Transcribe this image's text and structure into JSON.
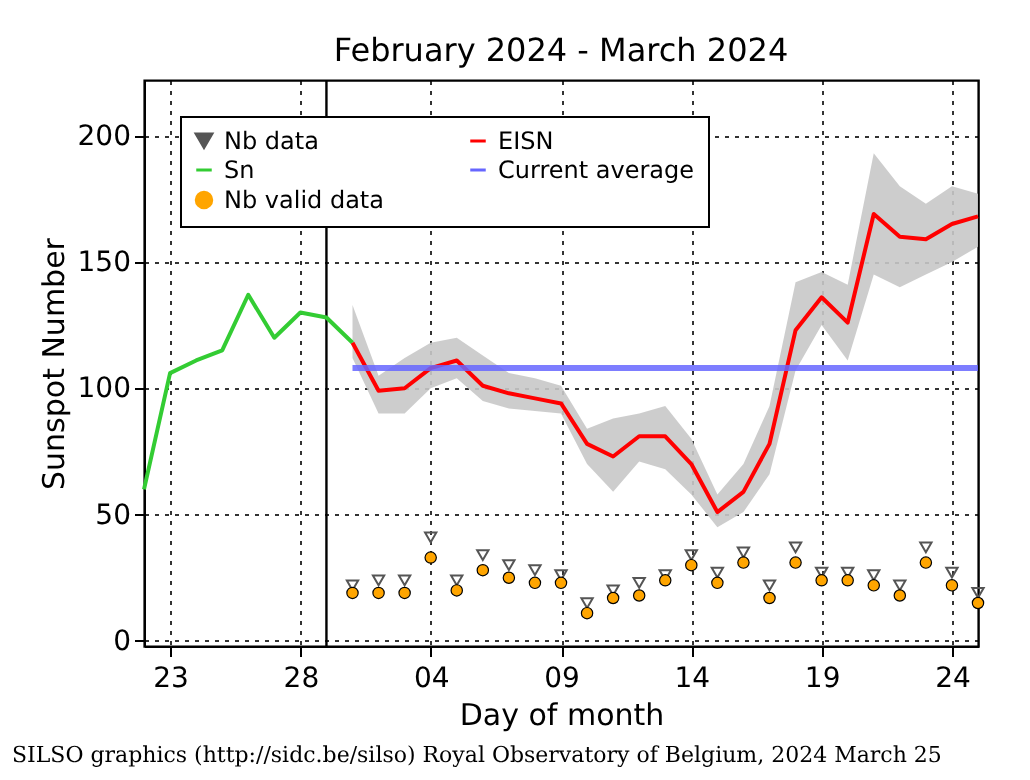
{
  "chart_data": {
    "type": "line",
    "title": "February 2024 - March 2024",
    "xlabel": "Day of month",
    "ylabel": "Sunspot Number",
    "xlim": [
      "2024-02-22",
      "2024-03-25"
    ],
    "ylim": [
      -2,
      222
    ],
    "xticks": [
      {
        "value": "2024-02-23",
        "label": "23"
      },
      {
        "value": "2024-02-28",
        "label": "28"
      },
      {
        "value": "2024-03-04",
        "label": "04"
      },
      {
        "value": "2024-03-09",
        "label": "09"
      },
      {
        "value": "2024-03-14",
        "label": "14"
      },
      {
        "value": "2024-03-19",
        "label": "19"
      },
      {
        "value": "2024-03-24",
        "label": "24"
      }
    ],
    "yticks": [
      0,
      50,
      100,
      150,
      200
    ],
    "grid": true,
    "legend": "top left",
    "ref_lines": [
      {
        "axis": "x",
        "value": "2024-02-29",
        "color": "#000000"
      }
    ],
    "annotations": [
      "SILSO graphics (http://sidc.be/silso) Royal Observatory of Belgium, 2024 March 25"
    ],
    "series": [
      {
        "name": "Nb data",
        "type": "scatter",
        "marker": "triangle",
        "color": "#555555",
        "x": [
          "2024-03-01",
          "2024-03-02",
          "2024-03-03",
          "2024-03-04",
          "2024-03-05",
          "2024-03-06",
          "2024-03-07",
          "2024-03-08",
          "2024-03-09",
          "2024-03-10",
          "2024-03-11",
          "2024-03-12",
          "2024-03-13",
          "2024-03-14",
          "2024-03-15",
          "2024-03-16",
          "2024-03-17",
          "2024-03-18",
          "2024-03-19",
          "2024-03-20",
          "2024-03-21",
          "2024-03-22",
          "2024-03-23",
          "2024-03-24",
          "2024-03-25"
        ],
        "values": [
          22,
          24,
          24,
          41,
          24,
          34,
          30,
          28,
          26,
          15,
          20,
          23,
          26,
          34,
          27,
          35,
          22,
          37,
          27,
          27,
          26,
          22,
          37,
          27,
          19
        ]
      },
      {
        "name": "Sn",
        "type": "line",
        "color": "#33cc33",
        "x": [
          "2024-02-22",
          "2024-02-23",
          "2024-02-24",
          "2024-02-25",
          "2024-02-26",
          "2024-02-27",
          "2024-02-28",
          "2024-02-29",
          "2024-03-01"
        ],
        "values": [
          60,
          106,
          111,
          115,
          137,
          120,
          130,
          128,
          118
        ]
      },
      {
        "name": "Nb valid data",
        "type": "scatter",
        "marker": "circle",
        "color": "#ffa500",
        "x": [
          "2024-03-01",
          "2024-03-02",
          "2024-03-03",
          "2024-03-04",
          "2024-03-05",
          "2024-03-06",
          "2024-03-07",
          "2024-03-08",
          "2024-03-09",
          "2024-03-10",
          "2024-03-11",
          "2024-03-12",
          "2024-03-13",
          "2024-03-14",
          "2024-03-15",
          "2024-03-16",
          "2024-03-17",
          "2024-03-18",
          "2024-03-19",
          "2024-03-20",
          "2024-03-21",
          "2024-03-22",
          "2024-03-23",
          "2024-03-24",
          "2024-03-25"
        ],
        "values": [
          19,
          19,
          19,
          33,
          20,
          28,
          25,
          23,
          23,
          11,
          17,
          18,
          24,
          30,
          23,
          31,
          17,
          31,
          24,
          24,
          22,
          18,
          31,
          22,
          15
        ]
      },
      {
        "name": "EISN",
        "type": "line",
        "color": "#ff0000",
        "x": [
          "2024-03-01",
          "2024-03-02",
          "2024-03-03",
          "2024-03-04",
          "2024-03-05",
          "2024-03-06",
          "2024-03-07",
          "2024-03-08",
          "2024-03-09",
          "2024-03-10",
          "2024-03-11",
          "2024-03-12",
          "2024-03-13",
          "2024-03-14",
          "2024-03-15",
          "2024-03-16",
          "2024-03-17",
          "2024-03-18",
          "2024-03-19",
          "2024-03-20",
          "2024-03-21",
          "2024-03-22",
          "2024-03-23",
          "2024-03-24",
          "2024-03-25"
        ],
        "values": [
          118,
          99,
          100,
          108,
          111,
          101,
          98,
          96,
          94,
          78,
          73,
          81,
          81,
          70,
          51,
          59,
          78,
          123,
          136,
          126,
          169,
          160,
          159,
          165,
          168
        ],
        "lower": [
          112,
          90,
          90,
          100,
          104,
          95,
          92,
          91,
          90,
          70,
          59,
          71,
          68,
          58,
          45,
          51,
          66,
          107,
          125,
          111,
          145,
          140,
          145,
          150,
          156
        ],
        "upper": [
          133,
          105,
          112,
          118,
          120,
          113,
          106,
          104,
          101,
          84,
          88,
          90,
          93,
          80,
          58,
          70,
          93,
          142,
          146,
          141,
          193,
          180,
          173,
          180,
          177
        ]
      },
      {
        "name": "Current average",
        "type": "line",
        "color": "#6666ff",
        "x": [
          "2024-03-01",
          "2024-03-25"
        ],
        "values": [
          108,
          108
        ]
      }
    ]
  }
}
